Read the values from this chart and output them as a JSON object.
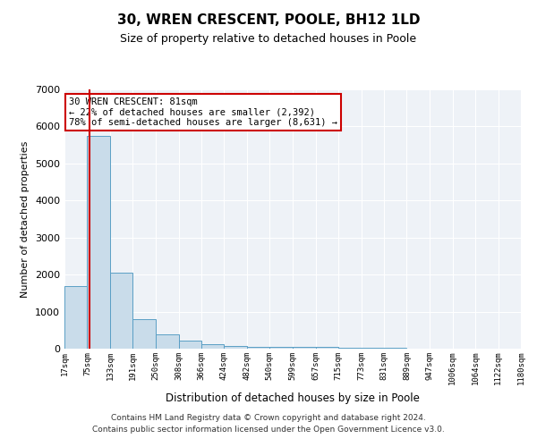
{
  "title": "30, WREN CRESCENT, POOLE, BH12 1LD",
  "subtitle": "Size of property relative to detached houses in Poole",
  "xlabel": "Distribution of detached houses by size in Poole",
  "ylabel": "Number of detached properties",
  "property_label": "30 WREN CRESCENT: 81sqm",
  "annotation_line1": "← 22% of detached houses are smaller (2,392)",
  "annotation_line2": "78% of semi-detached houses are larger (8,631) →",
  "bin_edges": [
    17,
    75,
    133,
    191,
    250,
    308,
    366,
    424,
    482,
    540,
    599,
    657,
    715,
    773,
    831,
    889,
    947,
    1006,
    1064,
    1122,
    1180
  ],
  "bin_counts": [
    1700,
    5750,
    2050,
    800,
    380,
    210,
    130,
    80,
    50,
    50,
    50,
    40,
    30,
    20,
    15,
    10,
    8,
    5,
    4,
    3
  ],
  "bar_color": "#c9dcea",
  "bar_edge_color": "#5a9fc5",
  "vline_color": "#cc0000",
  "vline_x": 81,
  "annotation_box_edge_color": "#cc0000",
  "background_color": "#eef2f7",
  "ylim": [
    0,
    7000
  ],
  "yticks": [
    0,
    1000,
    2000,
    3000,
    4000,
    5000,
    6000,
    7000
  ],
  "footer_line1": "Contains HM Land Registry data © Crown copyright and database right 2024.",
  "footer_line2": "Contains public sector information licensed under the Open Government Licence v3.0."
}
